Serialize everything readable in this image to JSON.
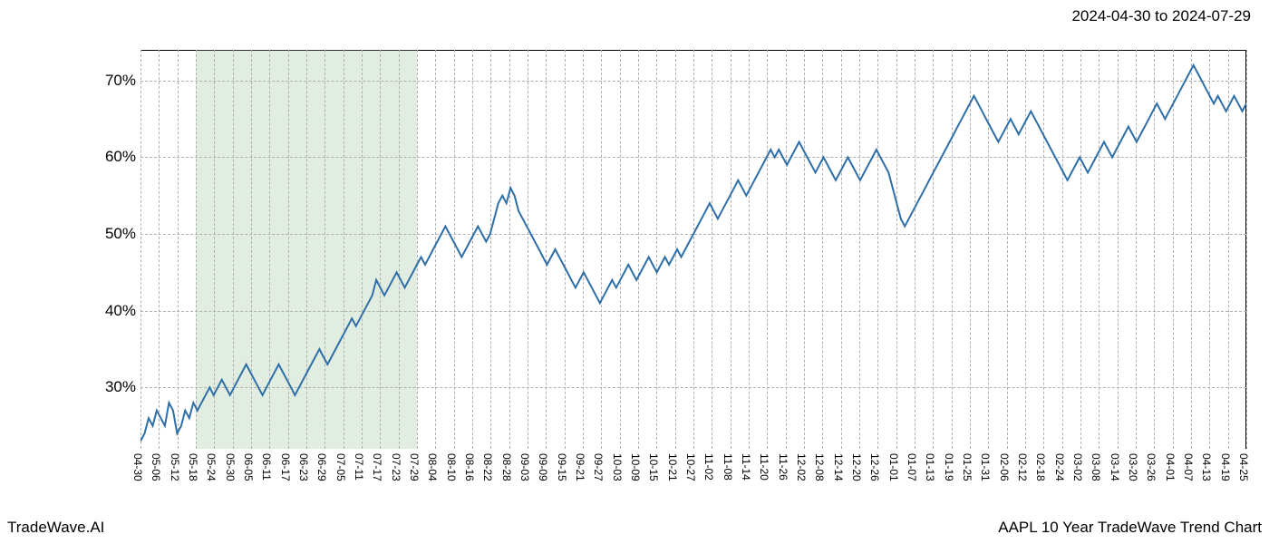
{
  "header": {
    "date_range": "2024-04-30 to 2024-07-29"
  },
  "footer": {
    "brand": "TradeWave.AI",
    "title": "AAPL 10 Year TradeWave Trend Chart"
  },
  "chart": {
    "type": "line",
    "background_color": "#ffffff",
    "grid_color": "#b0b0b0",
    "grid_style": "dashed",
    "line_color": "#2f6fa7",
    "line_width": 2,
    "highlight_band": {
      "fill": "rgba(144,190,144,0.28)",
      "x_start_index": 3,
      "x_end_index": 15
    },
    "y_axis": {
      "min": 22,
      "max": 74,
      "ticks": [
        30,
        40,
        50,
        60,
        70
      ],
      "tick_suffix": "%",
      "tick_fontsize": 17
    },
    "x_axis": {
      "tick_fontsize": 12,
      "tick_rotation": 90,
      "labels": [
        "04-30",
        "05-06",
        "05-12",
        "05-18",
        "05-24",
        "05-30",
        "06-05",
        "06-11",
        "06-17",
        "06-23",
        "06-29",
        "07-05",
        "07-11",
        "07-17",
        "07-23",
        "07-29",
        "08-04",
        "08-10",
        "08-16",
        "08-22",
        "08-28",
        "09-03",
        "09-09",
        "09-15",
        "09-21",
        "09-27",
        "10-03",
        "10-09",
        "10-15",
        "10-21",
        "10-27",
        "11-02",
        "11-08",
        "11-14",
        "11-20",
        "11-26",
        "12-02",
        "12-08",
        "12-14",
        "12-20",
        "12-26",
        "01-01",
        "01-07",
        "01-13",
        "01-19",
        "01-25",
        "01-31",
        "02-06",
        "02-12",
        "02-18",
        "02-24",
        "03-02",
        "03-08",
        "03-14",
        "03-20",
        "03-26",
        "04-01",
        "04-07",
        "04-13",
        "04-19",
        "04-25"
      ]
    },
    "series": {
      "name": "trend",
      "values": [
        23,
        24,
        26,
        25,
        27,
        26,
        25,
        28,
        27,
        24,
        25,
        27,
        26,
        28,
        27,
        28,
        29,
        30,
        29,
        30,
        31,
        30,
        29,
        30,
        31,
        32,
        33,
        32,
        31,
        30,
        29,
        30,
        31,
        32,
        33,
        32,
        31,
        30,
        29,
        30,
        31,
        32,
        33,
        34,
        35,
        34,
        33,
        34,
        35,
        36,
        37,
        38,
        39,
        38,
        39,
        40,
        41,
        42,
        44,
        43,
        42,
        43,
        44,
        45,
        44,
        43,
        44,
        45,
        46,
        47,
        46,
        47,
        48,
        49,
        50,
        51,
        50,
        49,
        48,
        47,
        48,
        49,
        50,
        51,
        50,
        49,
        50,
        52,
        54,
        55,
        54,
        56,
        55,
        53,
        52,
        51,
        50,
        49,
        48,
        47,
        46,
        47,
        48,
        47,
        46,
        45,
        44,
        43,
        44,
        45,
        44,
        43,
        42,
        41,
        42,
        43,
        44,
        43,
        44,
        45,
        46,
        45,
        44,
        45,
        46,
        47,
        46,
        45,
        46,
        47,
        46,
        47,
        48,
        47,
        48,
        49,
        50,
        51,
        52,
        53,
        54,
        53,
        52,
        53,
        54,
        55,
        56,
        57,
        56,
        55,
        56,
        57,
        58,
        59,
        60,
        61,
        60,
        61,
        60,
        59,
        60,
        61,
        62,
        61,
        60,
        59,
        58,
        59,
        60,
        59,
        58,
        57,
        58,
        59,
        60,
        59,
        58,
        57,
        58,
        59,
        60,
        61,
        60,
        59,
        58,
        56,
        54,
        52,
        51,
        52,
        53,
        54,
        55,
        56,
        57,
        58,
        59,
        60,
        61,
        62,
        63,
        64,
        65,
        66,
        67,
        68,
        67,
        66,
        65,
        64,
        63,
        62,
        63,
        64,
        65,
        64,
        63,
        64,
        65,
        66,
        65,
        64,
        63,
        62,
        61,
        60,
        59,
        58,
        57,
        58,
        59,
        60,
        59,
        58,
        59,
        60,
        61,
        62,
        61,
        60,
        61,
        62,
        63,
        64,
        63,
        62,
        63,
        64,
        65,
        66,
        67,
        66,
        65,
        66,
        67,
        68,
        69,
        70,
        71,
        72,
        71,
        70,
        69,
        68,
        67,
        68,
        67,
        66,
        67,
        68,
        67,
        66,
        67
      ]
    }
  }
}
